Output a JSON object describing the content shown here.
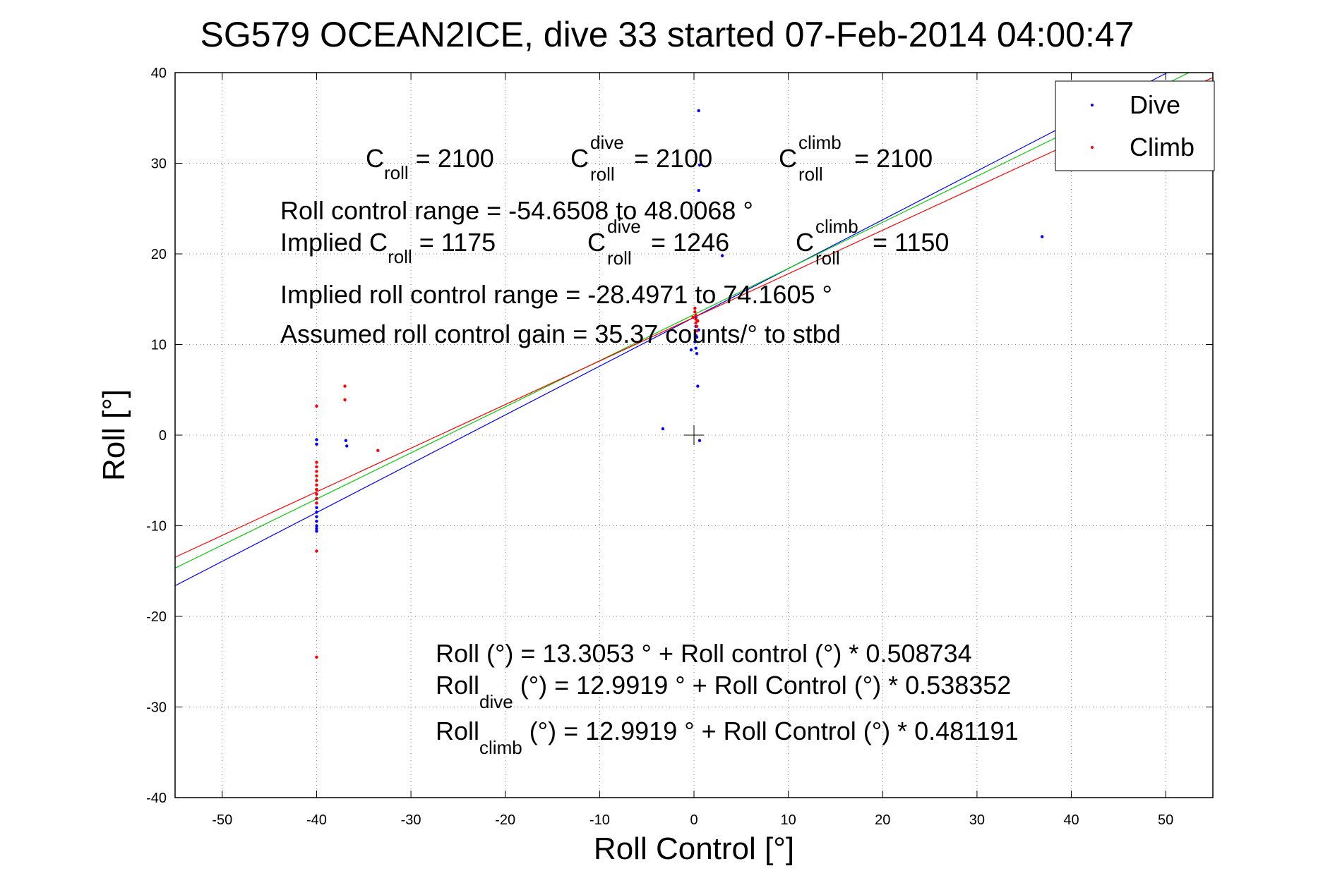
{
  "chart_data": {
    "type": "scatter",
    "title": "SG579 OCEAN2ICE, dive 33 started 07-Feb-2014 04:00:47",
    "xlabel": "Roll Control [°]",
    "ylabel": "Roll [°]",
    "xlim": [
      -55,
      55
    ],
    "ylim": [
      -40,
      40
    ],
    "xticks": [
      -50,
      -40,
      -30,
      -20,
      -10,
      0,
      10,
      20,
      30,
      40,
      50
    ],
    "yticks": [
      -40,
      -30,
      -20,
      -10,
      0,
      10,
      20,
      30,
      40
    ],
    "grid": true,
    "legend_position": "top-right",
    "series": [
      {
        "name": "Dive",
        "color": "#0000ff",
        "marker": "dot",
        "points": [
          [
            -40,
            -0.5
          ],
          [
            -40,
            -1.0
          ],
          [
            -40,
            -6.0
          ],
          [
            -40,
            -6.5
          ],
          [
            -40,
            -7.0
          ],
          [
            -40,
            -7.5
          ],
          [
            -40,
            -8.0
          ],
          [
            -40,
            -8.5
          ],
          [
            -40,
            -9.0
          ],
          [
            -40,
            -9.5
          ],
          [
            -40,
            -10.0
          ],
          [
            -40,
            -10.3
          ],
          [
            -40,
            -10.6
          ],
          [
            -36.9,
            -0.6
          ],
          [
            -36.8,
            -1.2
          ],
          [
            -3.3,
            0.7
          ],
          [
            0.5,
            35.8
          ],
          [
            0.5,
            27.0
          ],
          [
            0.6,
            29.8
          ],
          [
            3.0,
            19.8
          ],
          [
            0.2,
            13.0
          ],
          [
            0.2,
            12.0
          ],
          [
            0.2,
            11.0
          ],
          [
            0.1,
            10.3
          ],
          [
            0.2,
            9.6
          ],
          [
            0.3,
            9.0
          ],
          [
            -0.3,
            9.4
          ],
          [
            0.3,
            10.8
          ],
          [
            0.5,
            11.6
          ],
          [
            0.4,
            5.4
          ],
          [
            0.6,
            -0.6
          ],
          [
            36.9,
            21.9
          ]
        ]
      },
      {
        "name": "Climb",
        "color": "#ff0000",
        "marker": "dot",
        "points": [
          [
            -40,
            3.2
          ],
          [
            -40,
            -3.0
          ],
          [
            -40,
            -3.5
          ],
          [
            -40,
            -4.0
          ],
          [
            -40,
            -4.5
          ],
          [
            -40,
            -5.0
          ],
          [
            -40,
            -5.5
          ],
          [
            -40,
            -6.0
          ],
          [
            -40,
            -6.5
          ],
          [
            -40,
            -7.0
          ],
          [
            -40,
            -7.5
          ],
          [
            -40,
            -12.8
          ],
          [
            -40,
            -24.5
          ],
          [
            -37.0,
            5.4
          ],
          [
            -37.0,
            3.9
          ],
          [
            -33.5,
            -1.7
          ],
          [
            0.1,
            14.0
          ],
          [
            0.1,
            13.6
          ],
          [
            0.2,
            13.2
          ],
          [
            0.2,
            12.8
          ],
          [
            0.2,
            12.4
          ],
          [
            0.3,
            12.0
          ],
          [
            0.3,
            11.5
          ],
          [
            -0.1,
            13.0
          ],
          [
            0.4,
            12.6
          ]
        ]
      }
    ],
    "fit_lines": [
      {
        "name": "dive fit",
        "color": "#0000ff",
        "intercept": 12.9919,
        "slope": 0.538352
      },
      {
        "name": "all fit",
        "color": "#00cc00",
        "intercept": 13.3053,
        "slope": 0.508734
      },
      {
        "name": "climb fit",
        "color": "#ff0000",
        "intercept": 12.9919,
        "slope": 0.481191
      }
    ],
    "origin_marker": [
      0,
      0
    ],
    "annotations": {
      "c_roll": {
        "main": "C",
        "sub": "roll",
        "rest": " = 2100"
      },
      "c_roll_dive": {
        "main": "C",
        "sup": "dive",
        "sub": "roll",
        "rest": " = 2100"
      },
      "c_roll_climb": {
        "main": "C",
        "sup": "climb",
        "sub": "roll",
        "rest": " = 2100"
      },
      "range": "Roll control range = -54.6508 to 48.0068 °",
      "implied_c_roll": {
        "pre": "Implied C",
        "sub": "roll",
        "rest": " = 1175"
      },
      "implied_c_dive": {
        "main": "C",
        "sup": "dive",
        "sub": "roll",
        "rest": " = 1246"
      },
      "implied_c_climb": {
        "main": "C",
        "sup": "climb",
        "sub": "roll",
        "rest": " = 1150"
      },
      "implied_range": "Implied roll control range = -28.4971 to 74.1605 °",
      "gain": "Assumed roll control gain = 35.37 counts/° to stbd",
      "eq_all": "Roll (°) = 13.3053 ° + Roll control (°) * 0.508734",
      "eq_dive": {
        "main": "Roll",
        "sub": "dive",
        "rest": " (°) = 12.9919 ° + Roll Control (°) * 0.538352"
      },
      "eq_climb": {
        "main": "Roll",
        "sub": "climb",
        "rest": " (°) = 12.9919 ° + Roll Control (°) * 0.481191"
      }
    }
  }
}
